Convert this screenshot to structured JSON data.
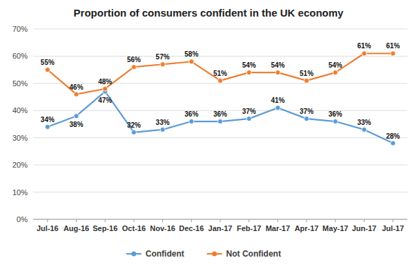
{
  "chart_data": {
    "type": "line",
    "title": "Proportion of consumers confident in the UK economy",
    "categories": [
      "Jul-16",
      "Aug-16",
      "Sep-16",
      "Oct-16",
      "Nov-16",
      "Dec-16",
      "Jan-17",
      "Feb-17",
      "Mar-17",
      "Apr-17",
      "May-17",
      "Jun-17",
      "Jul-17"
    ],
    "series": [
      {
        "name": "Confident",
        "color": "#5B9BD5",
        "marker": "circle",
        "values": [
          0.34,
          0.38,
          0.47,
          0.32,
          0.33,
          0.36,
          0.36,
          0.37,
          0.41,
          0.37,
          0.36,
          0.33,
          0.28
        ],
        "value_labels": [
          "34%",
          "38%",
          "47%",
          "32%",
          "33%",
          "36%",
          "36%",
          "37%",
          "41%",
          "37%",
          "36%",
          "33%",
          "28%"
        ]
      },
      {
        "name": "Not Confident",
        "color": "#ED7D31",
        "marker": "circle",
        "values": [
          0.55,
          0.46,
          0.48,
          0.56,
          0.57,
          0.58,
          0.51,
          0.54,
          0.54,
          0.51,
          0.54,
          0.61,
          0.61
        ],
        "value_labels": [
          "55%",
          "46%",
          "48%",
          "56%",
          "57%",
          "58%",
          "51%",
          "54%",
          "54%",
          "51%",
          "54%",
          "61%",
          "61%"
        ]
      }
    ],
    "ylim": [
      0.0,
      0.7
    ],
    "yticks": [
      {
        "value": 0.0,
        "label": "0%"
      },
      {
        "value": 0.1,
        "label": "10%"
      },
      {
        "value": 0.2,
        "label": "20%"
      },
      {
        "value": 0.3,
        "label": "30%"
      },
      {
        "value": 0.4,
        "label": "40%"
      },
      {
        "value": 0.5,
        "label": "50%"
      },
      {
        "value": 0.6,
        "label": "60%"
      },
      {
        "value": 0.7,
        "label": "70%"
      }
    ],
    "grid": true,
    "legend": "bottom",
    "data_labels": true
  }
}
